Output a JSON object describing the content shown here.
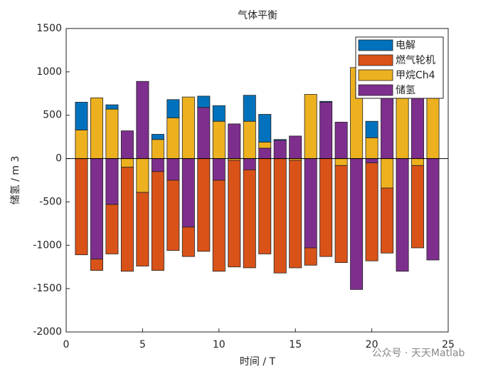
{
  "chart_data": {
    "type": "bar",
    "stacked": true,
    "title": "气体平衡",
    "xlabel": "时间 / T",
    "ylabel": "储氢 / m 3",
    "x": [
      1,
      2,
      3,
      4,
      5,
      6,
      7,
      8,
      9,
      10,
      11,
      12,
      13,
      14,
      15,
      16,
      17,
      18,
      19,
      20,
      21,
      22,
      23,
      24
    ],
    "series": [
      {
        "name": "电解",
        "color": "#0072BD",
        "values": [
          320,
          0,
          50,
          0,
          0,
          60,
          210,
          0,
          130,
          180,
          0,
          300,
          320,
          10,
          0,
          0,
          10,
          0,
          0,
          190,
          0,
          0,
          0,
          0
        ]
      },
      {
        "name": "燃气轮机",
        "color": "#D95319",
        "values": [
          -1110,
          -130,
          -570,
          -1200,
          -850,
          -1140,
          -810,
          -340,
          -1070,
          -1050,
          -1230,
          -1130,
          -1100,
          -1320,
          -1240,
          -200,
          -1130,
          -1120,
          0,
          -1130,
          -750,
          0,
          -950,
          0
        ]
      },
      {
        "name": "甲烷Ch4",
        "color": "#EDB120",
        "values": [
          330,
          700,
          570,
          -100,
          -390,
          220,
          470,
          710,
          0,
          430,
          -20,
          430,
          70,
          0,
          -20,
          740,
          0,
          -80,
          1050,
          240,
          -340,
          750,
          -80,
          720
        ]
      },
      {
        "name": "储氢",
        "color": "#7E2F8E",
        "values": [
          0,
          -1160,
          -530,
          320,
          890,
          -150,
          -250,
          -790,
          590,
          -250,
          400,
          -130,
          120,
          210,
          260,
          -1030,
          650,
          420,
          -1510,
          -50,
          720,
          -1300,
          720,
          -1170
        ]
      }
    ],
    "xlim": [
      0,
      25
    ],
    "xticks": [
      0,
      5,
      10,
      15,
      20,
      25
    ],
    "ylim": [
      -2000,
      1500
    ],
    "yticks": [
      -2000,
      -1500,
      -1000,
      -500,
      0,
      500,
      1000,
      1500
    ],
    "legend": "northeast",
    "watermark": "公众号 · 天天Matlab"
  }
}
